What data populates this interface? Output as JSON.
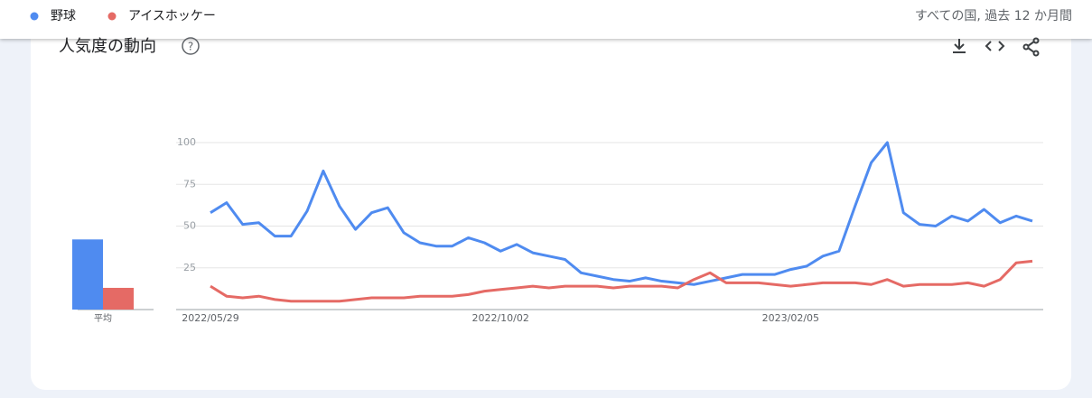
{
  "header": {
    "scope": "すべての国, 過去 12 か月間"
  },
  "card": {
    "title": "人気度の動向"
  },
  "chart_data": [
    {
      "type": "bar",
      "categories": [
        "平均"
      ],
      "ylim": [
        0,
        100
      ],
      "series": [
        {
          "color": "#4f8bf0",
          "values": [
            42
          ]
        },
        {
          "color": "#e56a65",
          "values": [
            13
          ]
        }
      ]
    },
    {
      "type": "line",
      "legend": "top",
      "grid": true,
      "categories": [
        "2022/05/29",
        null,
        null,
        null,
        null,
        null,
        null,
        null,
        null,
        null,
        null,
        null,
        null,
        null,
        null,
        null,
        null,
        null,
        "2022/10/02",
        null,
        null,
        null,
        null,
        null,
        null,
        null,
        null,
        null,
        null,
        null,
        null,
        null,
        null,
        null,
        null,
        null,
        "2023/02/05",
        null,
        null,
        null,
        null,
        null,
        null,
        null,
        null,
        null,
        null,
        null,
        null,
        null,
        null,
        null
      ],
      "ylim": [
        0,
        100
      ],
      "yticks": [
        25,
        50,
        75,
        100
      ],
      "series": [
        {
          "name": "野球",
          "color": "#4f8bf0",
          "values": [
            58,
            64,
            51,
            52,
            44,
            44,
            59,
            83,
            62,
            48,
            58,
            61,
            46,
            40,
            38,
            38,
            43,
            40,
            35,
            39,
            34,
            32,
            30,
            22,
            20,
            18,
            17,
            19,
            17,
            16,
            15,
            17,
            19,
            21,
            21,
            21,
            24,
            26,
            32,
            35,
            62,
            88,
            100,
            58,
            51,
            50,
            56,
            53,
            60,
            52,
            56,
            53
          ]
        },
        {
          "name": "アイスホッケー",
          "color": "#e56a65",
          "values": [
            14,
            8,
            7,
            8,
            6,
            5,
            5,
            5,
            5,
            6,
            7,
            7,
            7,
            8,
            8,
            8,
            9,
            11,
            12,
            13,
            14,
            13,
            14,
            14,
            14,
            13,
            14,
            14,
            14,
            13,
            18,
            22,
            16,
            16,
            16,
            15,
            14,
            15,
            16,
            16,
            16,
            15,
            18,
            14,
            15,
            15,
            15,
            16,
            14,
            18,
            28,
            29
          ]
        }
      ]
    }
  ]
}
